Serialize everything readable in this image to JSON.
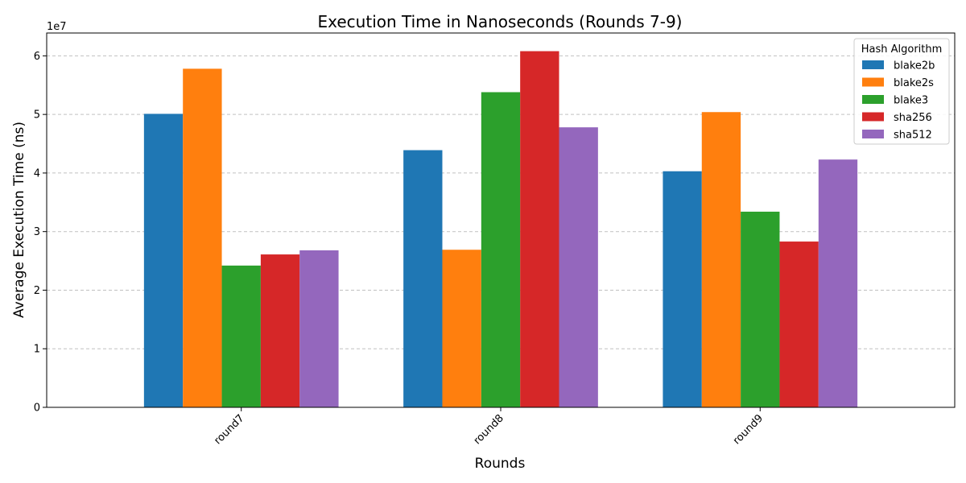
{
  "chart_data": {
    "type": "bar",
    "title": "Execution Time in Nanoseconds (Rounds 7-9)",
    "xlabel": "Rounds",
    "ylabel": "Average Execution Time (ns)",
    "y_offset_label": "1e7",
    "y_tick_labels": [
      "0",
      "1",
      "2",
      "3",
      "4",
      "5",
      "6"
    ],
    "y_tick_values": [
      0,
      10000000,
      20000000,
      30000000,
      40000000,
      50000000,
      60000000
    ],
    "ylim": [
      0,
      63900000
    ],
    "grid": "y-dashed",
    "legend_title": "Hash Algorithm",
    "legend_position": "top-right",
    "categories": [
      "round7",
      "round8",
      "round9"
    ],
    "series": [
      {
        "name": "blake2b",
        "color": "#1f77b4",
        "values": [
          50100000,
          43900000,
          40300000
        ]
      },
      {
        "name": "blake2s",
        "color": "#ff7f0e",
        "values": [
          57800000,
          26900000,
          50400000
        ]
      },
      {
        "name": "blake3",
        "color": "#2ca02c",
        "values": [
          24200000,
          53800000,
          33400000
        ]
      },
      {
        "name": "sha256",
        "color": "#d62728",
        "values": [
          26100000,
          60800000,
          28300000
        ]
      },
      {
        "name": "sha512",
        "color": "#9467bd",
        "values": [
          26800000,
          47800000,
          42300000
        ]
      }
    ]
  }
}
